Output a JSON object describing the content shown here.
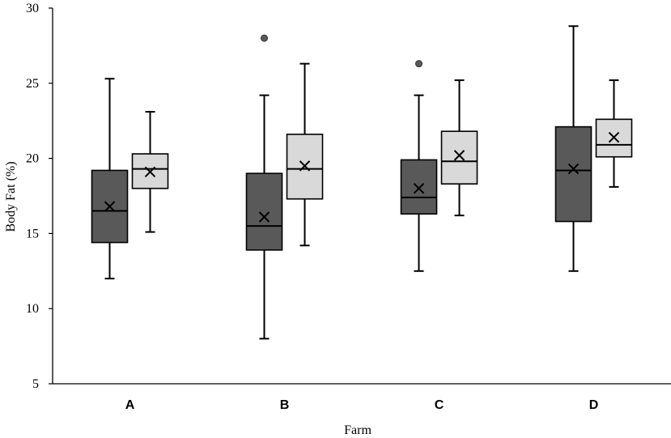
{
  "chart_data": {
    "type": "boxplot",
    "title": "",
    "xlabel": "Farm",
    "ylabel": "Body Fat (%)",
    "ylim": [
      5,
      30
    ],
    "yticks": [
      5,
      10,
      15,
      20,
      25,
      30
    ],
    "categories": [
      "A",
      "B",
      "C",
      "D"
    ],
    "grid": false,
    "legend": "none",
    "colors": {
      "series1": "#595959",
      "series2": "#d9d9d9",
      "stroke": "#000000",
      "outlier": "#595959"
    },
    "series": [
      {
        "boxes": [
          {
            "category": "A",
            "min": 12.0,
            "q1": 14.4,
            "median": 16.5,
            "q3": 19.2,
            "max": 25.3,
            "mean": 16.8,
            "outliers": []
          },
          {
            "category": "B",
            "min": 8.0,
            "q1": 13.9,
            "median": 15.5,
            "q3": 19.0,
            "max": 24.2,
            "mean": 16.1,
            "outliers": [
              28.0
            ]
          },
          {
            "category": "C",
            "min": 12.5,
            "q1": 16.3,
            "median": 17.4,
            "q3": 19.9,
            "max": 24.2,
            "mean": 18.0,
            "outliers": [
              26.3
            ]
          },
          {
            "category": "D",
            "min": 12.5,
            "q1": 15.8,
            "median": 19.2,
            "q3": 22.1,
            "max": 28.8,
            "mean": 19.3,
            "outliers": []
          }
        ]
      },
      {
        "boxes": [
          {
            "category": "A",
            "min": 15.1,
            "q1": 18.0,
            "median": 19.3,
            "q3": 20.3,
            "max": 23.1,
            "mean": 19.1,
            "outliers": []
          },
          {
            "category": "B",
            "min": 14.2,
            "q1": 17.3,
            "median": 19.3,
            "q3": 21.6,
            "max": 26.3,
            "mean": 19.5,
            "outliers": []
          },
          {
            "category": "C",
            "min": 16.2,
            "q1": 18.3,
            "median": 19.8,
            "q3": 21.8,
            "max": 25.2,
            "mean": 20.2,
            "outliers": []
          },
          {
            "category": "D",
            "min": 18.1,
            "q1": 20.1,
            "median": 20.9,
            "q3": 22.6,
            "max": 25.2,
            "mean": 21.4,
            "outliers": []
          }
        ]
      }
    ]
  }
}
